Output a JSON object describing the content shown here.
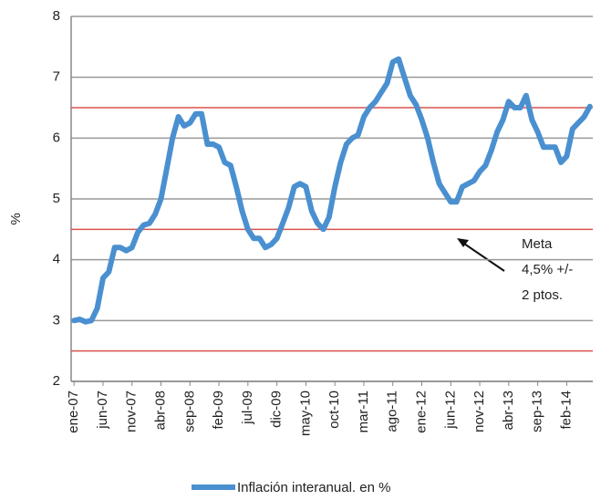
{
  "chart_data": {
    "type": "line",
    "y_label": "%",
    "categories": [
      "ene-07",
      null,
      null,
      null,
      null,
      "jun-07",
      null,
      null,
      null,
      null,
      "nov-07",
      null,
      null,
      null,
      null,
      "abr-08",
      null,
      null,
      null,
      null,
      "sep-08",
      null,
      null,
      null,
      null,
      "feb-09",
      null,
      null,
      null,
      null,
      "jul-09",
      null,
      null,
      null,
      null,
      "dic-09",
      null,
      null,
      null,
      null,
      "may-10",
      null,
      null,
      null,
      null,
      "oct-10",
      null,
      null,
      null,
      null,
      "mar-11",
      null,
      null,
      null,
      null,
      "ago-11",
      null,
      null,
      null,
      null,
      "ene-12",
      null,
      null,
      null,
      null,
      "jun-12",
      null,
      null,
      null,
      null,
      "nov-12",
      null,
      null,
      null,
      null,
      "abr-13",
      null,
      null,
      null,
      null,
      "sep-13",
      null,
      null,
      null,
      null,
      "feb-14",
      null,
      null,
      null,
      null
    ],
    "series": [
      {
        "name": "Inflación interanual. en %",
        "color": "#4a90d0",
        "values": [
          3.0,
          3.02,
          2.98,
          3.0,
          3.2,
          3.7,
          3.8,
          4.2,
          4.2,
          4.15,
          4.2,
          4.45,
          4.57,
          4.6,
          4.75,
          5.0,
          5.5,
          6.0,
          6.35,
          6.2,
          6.25,
          6.4,
          6.4,
          5.9,
          5.9,
          5.85,
          5.6,
          5.55,
          5.2,
          4.8,
          4.5,
          4.35,
          4.35,
          4.2,
          4.25,
          4.35,
          4.6,
          4.85,
          5.2,
          5.25,
          5.2,
          4.8,
          4.6,
          4.5,
          4.7,
          5.2,
          5.6,
          5.9,
          6.0,
          6.05,
          6.35,
          6.5,
          6.6,
          6.75,
          6.9,
          7.25,
          7.3,
          7.0,
          6.7,
          6.55,
          6.3,
          6.0,
          5.6,
          5.25,
          5.1,
          4.95,
          4.95,
          5.2,
          5.25,
          5.3,
          5.45,
          5.55,
          5.8,
          6.1,
          6.3,
          6.6,
          6.5,
          6.5,
          6.7,
          6.3,
          6.1,
          5.85,
          5.85,
          5.85,
          5.6,
          5.7,
          6.15,
          6.25,
          6.35,
          6.52
        ]
      }
    ],
    "reference_lines": [
      6.5,
      4.5,
      2.5
    ],
    "reference_color": "#d9534f",
    "annotation": [
      "Meta",
      "4,5%  +/-",
      "2 ptos."
    ],
    "ylim": [
      2,
      8
    ],
    "yticks": [
      2,
      3,
      4,
      5,
      6,
      7,
      8
    ],
    "grid": true
  }
}
